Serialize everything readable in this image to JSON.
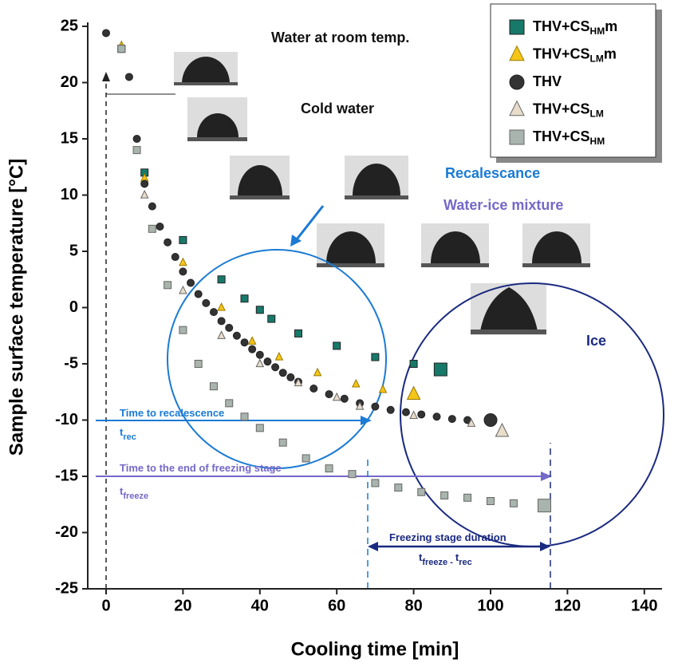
{
  "chart_data": {
    "type": "scatter",
    "x_label": "Cooling time [min]",
    "y_label": "Sample surface temperature [°C]",
    "xlim": [
      -5,
      140
    ],
    "ylim": [
      -25,
      25
    ],
    "xticks": [
      0,
      20,
      40,
      60,
      80,
      100,
      120,
      140
    ],
    "yticks": [
      -25,
      -20,
      -15,
      -10,
      -5,
      0,
      5,
      10,
      15,
      20,
      25
    ],
    "series": [
      {
        "name": [
          "THV+CS",
          "HM",
          "m"
        ],
        "marker": "square",
        "color": "#17796a",
        "x": [
          4,
          10,
          20,
          30,
          36,
          40,
          43,
          50,
          60,
          70,
          80,
          87
        ],
        "values": [
          23,
          12,
          6,
          2.5,
          0.8,
          -0.2,
          -1,
          -2.3,
          -3.4,
          -4.4,
          -5,
          -5.5
        ]
      },
      {
        "name": [
          "THV+CS",
          "LM",
          "m"
        ],
        "marker": "triangle",
        "color": "#f5c518",
        "x": [
          4,
          10,
          20,
          30,
          38,
          45,
          55,
          65,
          72,
          80
        ],
        "values": [
          23.3,
          11.5,
          4,
          0,
          -3,
          -4.4,
          -5.8,
          -6.8,
          -7.3,
          -7.7
        ]
      },
      {
        "name": [
          "THV"
        ],
        "marker": "circle",
        "color": "#333333",
        "x": [
          0,
          4,
          6,
          8,
          10,
          12,
          14,
          16,
          18,
          20,
          22,
          24,
          26,
          28,
          30,
          32,
          34,
          36,
          38,
          40,
          42,
          44,
          46,
          48,
          50,
          54,
          58,
          62,
          66,
          70,
          74,
          78,
          82,
          86,
          90,
          94,
          100
        ],
        "values": [
          24.4,
          23,
          20.5,
          15,
          11,
          9,
          7.2,
          5.8,
          4.5,
          3.2,
          2.2,
          1.2,
          0.4,
          -0.4,
          -1.2,
          -1.8,
          -2.5,
          -3.1,
          -3.7,
          -4.2,
          -4.8,
          -5.3,
          -5.8,
          -6.2,
          -6.6,
          -7.2,
          -7.7,
          -8.1,
          -8.5,
          -8.8,
          -9.1,
          -9.3,
          -9.5,
          -9.7,
          -9.9,
          -10,
          -10
        ]
      },
      {
        "name": [
          "THV+CS",
          "LM"
        ],
        "marker": "triangle-light",
        "color": "#e8dccb",
        "x": [
          4,
          10,
          20,
          30,
          40,
          50,
          60,
          66,
          80,
          95,
          103
        ],
        "values": [
          23,
          10,
          1.5,
          -2.5,
          -5,
          -6.7,
          -8,
          -8.8,
          -9.6,
          -10.3,
          -11
        ]
      },
      {
        "name": [
          "THV+CS",
          "HM"
        ],
        "marker": "square-light",
        "color": "#a8b4ad",
        "x": [
          4,
          8,
          12,
          16,
          20,
          24,
          28,
          32,
          36,
          40,
          46,
          52,
          58,
          64,
          70,
          76,
          82,
          88,
          94,
          100,
          106,
          114
        ],
        "values": [
          23,
          14,
          7,
          2,
          -2,
          -5,
          -7,
          -8.5,
          -9.7,
          -10.7,
          -12,
          -13.4,
          -14.3,
          -14.8,
          -15.6,
          -16,
          -16.4,
          -16.7,
          -16.9,
          -17.2,
          -17.4,
          -17.6
        ]
      }
    ],
    "annotations": [
      {
        "parts": [
          "Water at room temp."
        ],
        "color": "#111111"
      },
      {
        "parts": [
          "Cold water"
        ],
        "color": "#111111"
      },
      {
        "parts": [
          "Recalescance"
        ],
        "color": "#1a7ad4"
      },
      {
        "parts": [
          "Water-ice mixture"
        ],
        "color": "#7468c8"
      },
      {
        "parts": [
          "Ice"
        ],
        "color": "#1a2a80"
      },
      {
        "parts": [
          "Time to recalescence"
        ],
        "color": "#1a7ad4"
      },
      {
        "parts": [
          "t",
          "rec"
        ],
        "color": "#1a7ad4"
      },
      {
        "parts": [
          "Time to the end of freezing stage"
        ],
        "color": "#7468c8"
      },
      {
        "parts": [
          "t",
          "freeze"
        ],
        "color": "#7468c8"
      },
      {
        "parts": [
          "Freezing stage duration"
        ],
        "color": "#1a2a80"
      },
      {
        "parts": [
          "t",
          "freeze - ",
          "t",
          "rec"
        ],
        "color": "#1a2a80"
      }
    ]
  }
}
